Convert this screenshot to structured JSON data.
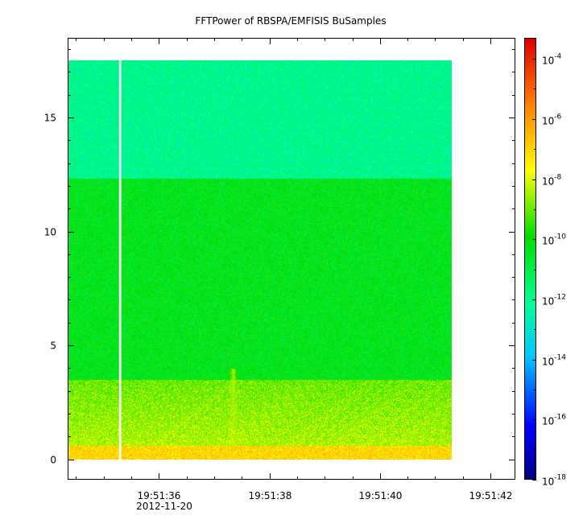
{
  "chart_data": {
    "type": "heatmap",
    "title": "FFTPower of RBSPA/EMFISIS  BuSamples",
    "date_label": "2012-11-20",
    "x_ticks": [
      {
        "t": 36,
        "label": "19:51:36"
      },
      {
        "t": 38,
        "label": "19:51:38"
      },
      {
        "t": 40,
        "label": "19:51:40"
      },
      {
        "t": 42,
        "label": "19:51:42"
      }
    ],
    "x_minor_ticks": [
      34.5,
      35,
      35.5,
      36.5,
      37,
      37.5,
      38.5,
      39,
      39.5,
      40.5,
      41,
      41.5
    ],
    "xlim": [
      34.35,
      42.45
    ],
    "y_ticks": [
      0,
      5,
      10,
      15
    ],
    "ylim": [
      -0.9,
      18.5
    ],
    "data_extent": {
      "t_start": 34.35,
      "t_end": 41.3,
      "f_min": 0,
      "f_max": 17.5
    },
    "gap": {
      "t_start": 35.28,
      "t_end": 35.32
    },
    "colorbar": {
      "scale": "log",
      "range": [
        -18,
        -3.3
      ],
      "tick_exponents": [
        -4,
        -6,
        -8,
        -10,
        -12,
        -14,
        -16,
        -18
      ],
      "base": "10"
    },
    "features": [
      {
        "type": "band",
        "f_range": [
          12.3,
          17.5
        ],
        "log_power": -12.0
      },
      {
        "type": "band",
        "f_range": [
          3.5,
          12.3
        ],
        "log_power": -10.3
      },
      {
        "type": "band",
        "f_range": [
          0.6,
          3.5
        ],
        "log_power": -9.0
      },
      {
        "type": "band",
        "f_range": [
          0.0,
          0.6
        ],
        "log_power": -7.0
      },
      {
        "type": "burst",
        "t": 37.35,
        "f_range": [
          0.6,
          4.0
        ],
        "log_power": -8.6
      }
    ]
  }
}
